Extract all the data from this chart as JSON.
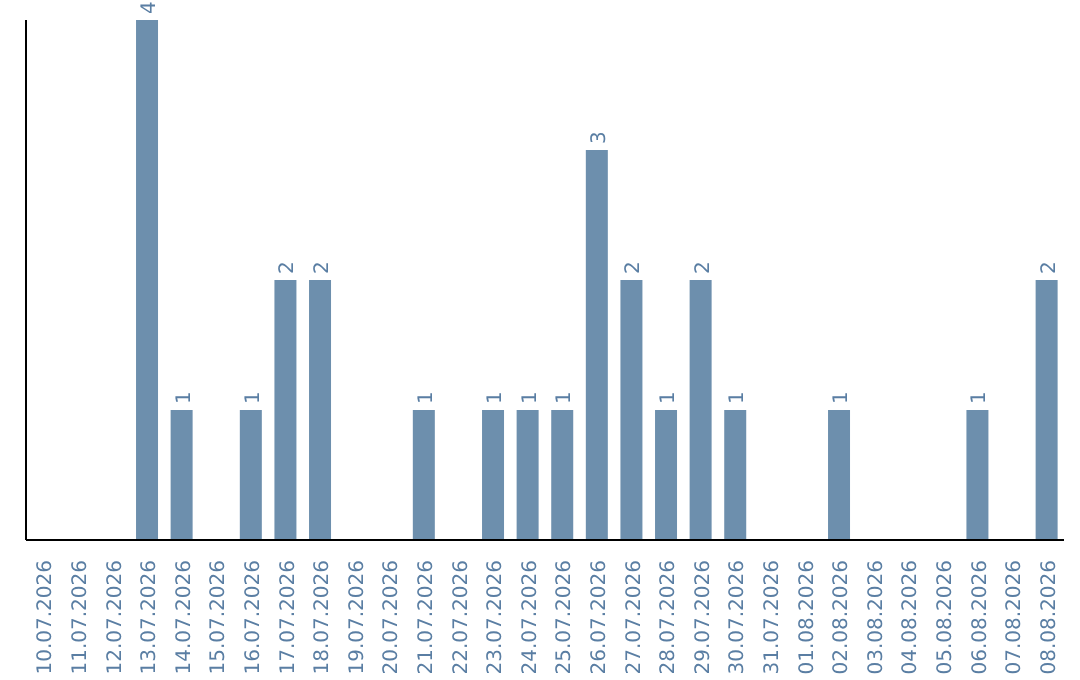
{
  "chart_data": {
    "type": "bar",
    "categories": [
      "10.07.2026",
      "11.07.2026",
      "12.07.2026",
      "13.07.2026",
      "14.07.2026",
      "15.07.2026",
      "16.07.2026",
      "17.07.2026",
      "18.07.2026",
      "19.07.2026",
      "20.07.2026",
      "21.07.2026",
      "22.07.2026",
      "23.07.2026",
      "24.07.2026",
      "25.07.2026",
      "26.07.2026",
      "27.07.2026",
      "28.07.2026",
      "29.07.2026",
      "30.07.2026",
      "31.07.2026",
      "01.08.2026",
      "02.08.2026",
      "03.08.2026",
      "04.08.2026",
      "05.08.2026",
      "06.08.2026",
      "07.08.2026",
      "08.08.2026"
    ],
    "values": [
      null,
      null,
      null,
      4,
      1,
      null,
      1,
      2,
      2,
      null,
      null,
      1,
      null,
      1,
      1,
      1,
      3,
      2,
      1,
      2,
      1,
      null,
      null,
      1,
      null,
      null,
      null,
      1,
      null,
      2
    ],
    "color": "#6d8fad",
    "data_labels": true,
    "grid": false,
    "legend": false
  }
}
